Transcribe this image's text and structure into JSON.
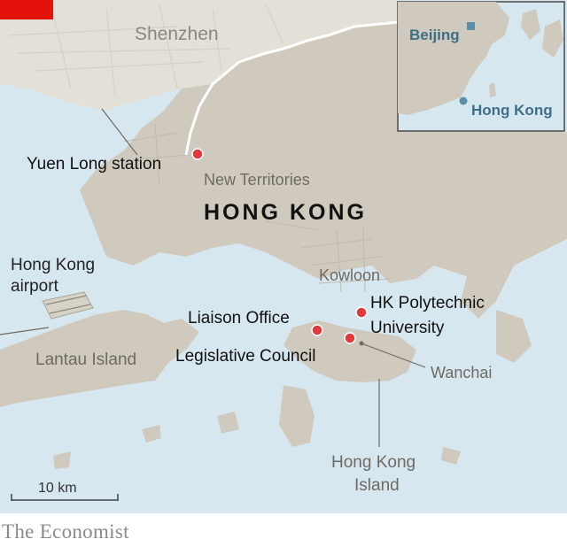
{
  "map": {
    "labels": {
      "city": "Shenzhen",
      "region_main": "HONG KONG",
      "new_territories": "New Territories",
      "kowloon": "Kowloon",
      "airport_line1": "Hong Kong",
      "airport_line2": "airport",
      "lantau": "Lantau Island",
      "hk_island_line1": "Hong Kong",
      "hk_island_line2": "Island",
      "wanchai": "Wanchai"
    },
    "markers": [
      {
        "label": "Yuen Long station"
      },
      {
        "label": "Liaison Office"
      },
      {
        "label": "Legislative Council"
      },
      {
        "label_line1": "HK Polytechnic",
        "label_line2": "University"
      }
    ],
    "scale_label": "10 km",
    "inset": {
      "capital": "Beijing",
      "city": "Hong Kong"
    },
    "colors": {
      "water": "#d7e7ef",
      "land": "#cfcabd",
      "china_land": "#e3e0d8",
      "marker": "#e03a3e",
      "accent_red": "#e3120b",
      "label": "#6e6a64"
    }
  },
  "footer": {
    "brand": "The Economist"
  }
}
